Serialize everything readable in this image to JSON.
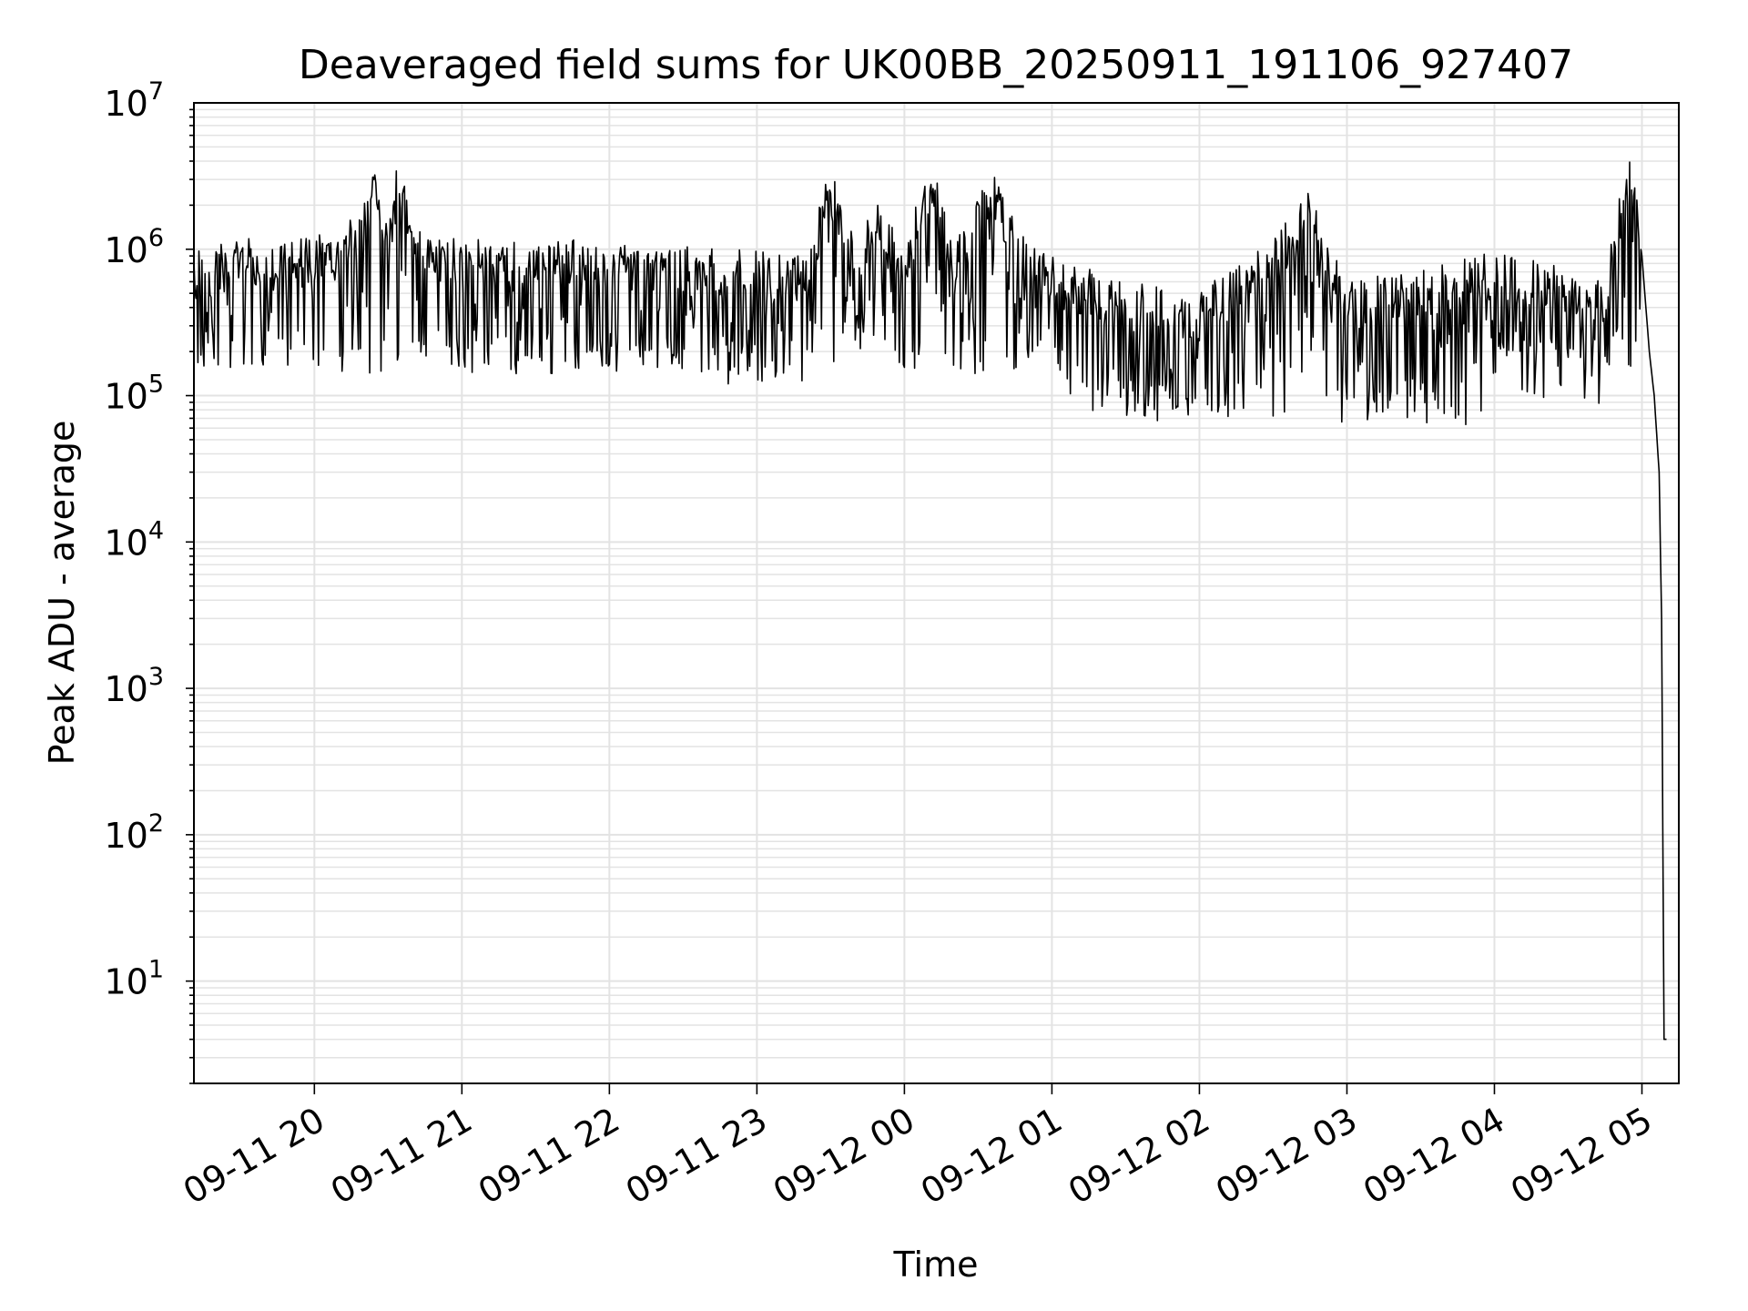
{
  "chart_data": {
    "type": "line",
    "title": "Deaveraged field sums for UK00BB_20250911_191106_927407",
    "xlabel": "Time",
    "ylabel": "Peak ADU - average",
    "yscale": "log",
    "grid": "on (major and minor)",
    "xlim": [
      "2025-09-11 19:11",
      "2025-09-12 05:15"
    ],
    "ylim": [
      2,
      10000000
    ],
    "x_ticks": [
      "09-11 20",
      "09-11 21",
      "09-11 22",
      "09-11 23",
      "09-12 00",
      "09-12 01",
      "09-12 02",
      "09-12 03",
      "09-12 04",
      "09-12 05"
    ],
    "y_ticks": [
      {
        "base": "10",
        "exp": "1",
        "value": 10
      },
      {
        "base": "10",
        "exp": "2",
        "value": 100
      },
      {
        "base": "10",
        "exp": "3",
        "value": 1000
      },
      {
        "base": "10",
        "exp": "4",
        "value": 10000
      },
      {
        "base": "10",
        "exp": "5",
        "value": 100000
      },
      {
        "base": "10",
        "exp": "6",
        "value": 1000000
      },
      {
        "base": "10",
        "exp": "7",
        "value": 10000000
      }
    ],
    "series": [
      {
        "color": "#000000",
        "points": [
          [
            "2025-09-11 19:11",
            650000
          ],
          [
            "2025-09-11 19:20",
            700000
          ],
          [
            "2025-09-11 19:30",
            900000
          ],
          [
            "2025-09-11 19:40",
            700000
          ],
          [
            "2025-09-11 19:50",
            800000
          ],
          [
            "2025-09-11 20:00",
            850000
          ],
          [
            "2025-09-11 20:10",
            900000
          ],
          [
            "2025-09-11 20:20",
            1400000
          ],
          [
            "2025-09-11 20:25",
            2500000
          ],
          [
            "2025-09-11 20:30",
            1000000
          ],
          [
            "2025-09-11 20:35",
            3500000
          ],
          [
            "2025-09-11 20:40",
            1200000
          ],
          [
            "2025-09-11 20:50",
            900000
          ],
          [
            "2025-09-11 21:00",
            800000
          ],
          [
            "2025-09-11 21:15",
            750000
          ],
          [
            "2025-09-11 21:30",
            800000
          ],
          [
            "2025-09-11 22:00",
            750000
          ],
          [
            "2025-09-11 22:30",
            700000
          ],
          [
            "2025-09-11 23:00",
            650000
          ],
          [
            "2025-09-11 23:20",
            600000
          ],
          [
            "2025-09-11 23:30",
            2500000
          ],
          [
            "2025-09-11 23:40",
            800000
          ],
          [
            "2025-09-11 23:50",
            1500000
          ],
          [
            "2025-09-12 00:00",
            600000
          ],
          [
            "2025-09-12 00:10",
            3500000
          ],
          [
            "2025-09-12 00:20",
            700000
          ],
          [
            "2025-09-12 00:35",
            2500000
          ],
          [
            "2025-09-12 00:50",
            800000
          ],
          [
            "2025-09-12 01:00",
            600000
          ],
          [
            "2025-09-12 01:30",
            400000
          ],
          [
            "2025-09-12 02:00",
            350000
          ],
          [
            "2025-09-12 02:30",
            800000
          ],
          [
            "2025-09-12 02:45",
            1800000
          ],
          [
            "2025-09-12 03:00",
            400000
          ],
          [
            "2025-09-12 03:30",
            500000
          ],
          [
            "2025-09-12 04:00",
            650000
          ],
          [
            "2025-09-12 04:30",
            500000
          ],
          [
            "2025-09-12 04:45",
            450000
          ],
          [
            "2025-09-12 04:55",
            3500000
          ],
          [
            "2025-09-12 05:00",
            900000
          ],
          [
            "2025-09-12 05:03",
            200000
          ],
          [
            "2025-09-12 05:05",
            100000
          ],
          [
            "2025-09-12 05:07",
            30000
          ],
          [
            "2025-09-12 05:08",
            3000
          ],
          [
            "2025-09-12 05:09",
            4
          ],
          [
            "2025-09-12 05:10",
            4
          ]
        ]
      }
    ]
  }
}
